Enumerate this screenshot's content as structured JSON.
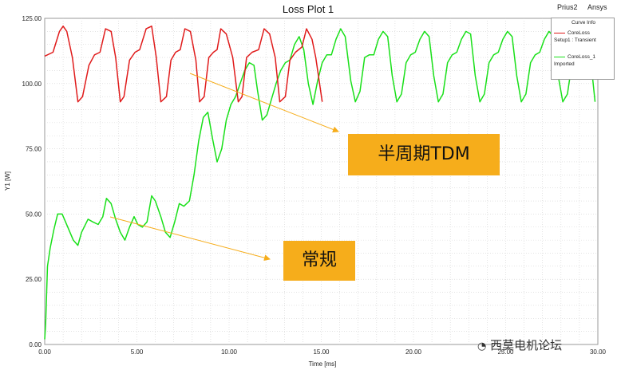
{
  "header": {
    "project": "Prius2",
    "brand": "Ansys"
  },
  "legend": {
    "title": "Curve Info",
    "entries": [
      {
        "name": "CoreLoss",
        "sub": "Setup1 : Transient",
        "color": "#e01b1b"
      },
      {
        "name": "CoreLoss_1",
        "sub": "Imported",
        "color": "#19e019"
      }
    ]
  },
  "annotations": {
    "callout_tdm": "半周期TDM",
    "callout_normal": "常规",
    "arrow_color": "#f6ad1b"
  },
  "watermark": "西莫电机论坛",
  "chart_data": {
    "type": "line",
    "title": "Loss Plot 1",
    "xlabel": "Time [ms]",
    "ylabel": "Y1 [W]",
    "xlim": [
      0,
      30
    ],
    "ylim": [
      0,
      125
    ],
    "xticks": [
      "0.00",
      "5.00",
      "10.00",
      "15.00",
      "20.00",
      "25.00",
      "30.00"
    ],
    "yticks": [
      "0.00",
      "25.00",
      "50.00",
      "75.00",
      "100.00",
      "125.00"
    ],
    "grid": true,
    "legend_position": "top-right",
    "series": [
      {
        "name": "CoreLoss",
        "color": "#e01b1b",
        "x": [
          0.0,
          0.45,
          0.8,
          1.0,
          1.2,
          1.5,
          1.8,
          2.05,
          2.4,
          2.7,
          3.0,
          3.3,
          3.6,
          3.85,
          4.1,
          4.3,
          4.6,
          4.9,
          5.15,
          5.5,
          5.8,
          6.05,
          6.3,
          6.6,
          6.85,
          7.1,
          7.35,
          7.6,
          7.9,
          8.2,
          8.4,
          8.65,
          8.9,
          9.15,
          9.35,
          9.55,
          9.85,
          10.2,
          10.5,
          10.7,
          10.95,
          11.25,
          11.6,
          11.9,
          12.2,
          12.5,
          12.75,
          13.05,
          13.3,
          13.6,
          13.95,
          14.2,
          14.5,
          14.7,
          15.05
        ],
        "y": [
          110.5,
          112,
          120,
          122,
          120,
          110,
          93,
          95,
          107,
          111,
          112,
          121,
          120,
          110,
          93,
          95,
          109,
          112,
          113,
          121,
          122,
          110,
          93,
          95,
          109,
          112,
          113,
          121,
          120,
          109,
          93,
          95,
          110,
          112,
          113,
          121,
          119,
          110,
          93,
          95,
          110,
          112,
          113,
          121,
          119,
          110,
          93,
          95,
          109,
          112,
          114,
          121,
          117,
          110,
          93
        ]
      },
      {
        "name": "CoreLoss_1",
        "color": "#19e019",
        "x": [
          0.0,
          0.05,
          0.15,
          0.3,
          0.5,
          0.7,
          0.95,
          1.25,
          1.55,
          1.8,
          2.0,
          2.35,
          2.6,
          2.9,
          3.15,
          3.35,
          3.6,
          3.85,
          4.1,
          4.35,
          4.6,
          4.85,
          5.05,
          5.3,
          5.55,
          5.8,
          6.0,
          6.3,
          6.55,
          6.8,
          7.05,
          7.3,
          7.55,
          7.85,
          8.1,
          8.35,
          8.6,
          8.85,
          9.1,
          9.35,
          9.6,
          9.85,
          10.1,
          10.35,
          10.6,
          10.85,
          11.1,
          11.35,
          11.55,
          11.8,
          12.05,
          12.3,
          12.55,
          12.8,
          13.05,
          13.3,
          13.55,
          13.8,
          14.05,
          14.3,
          14.55,
          14.8,
          15.05,
          15.3,
          15.55,
          15.8,
          16.05,
          16.3,
          16.6,
          16.85,
          17.1,
          17.35,
          17.6,
          17.85,
          18.1,
          18.35,
          18.6,
          18.85,
          19.1,
          19.35,
          19.6,
          19.85,
          20.1,
          20.35,
          20.6,
          20.85,
          21.1,
          21.35,
          21.6,
          21.85,
          22.1,
          22.35,
          22.6,
          22.85,
          23.1,
          23.35,
          23.6,
          23.85,
          24.1,
          24.35,
          24.6,
          24.85,
          25.1,
          25.35,
          25.6,
          25.85,
          26.1,
          26.35,
          26.6,
          26.85,
          27.1,
          27.35,
          27.6,
          27.85,
          28.1,
          28.35,
          28.6,
          28.85,
          29.1,
          29.35,
          29.6,
          29.85
        ],
        "y": [
          2,
          8,
          30,
          37,
          44,
          50,
          50,
          45,
          40,
          38,
          43,
          48,
          47,
          46,
          49,
          56,
          54,
          48,
          43,
          40,
          45,
          49,
          46,
          45,
          47,
          57,
          55,
          49,
          43,
          41,
          47,
          54,
          53,
          55,
          65,
          78,
          87,
          89,
          79,
          70,
          75,
          86,
          92,
          95,
          100,
          105,
          108,
          107,
          97,
          86,
          88,
          94,
          100,
          105,
          108,
          109,
          115,
          118,
          113,
          100,
          92,
          101,
          108,
          111,
          111,
          117,
          121,
          118,
          101,
          93,
          97,
          110,
          111,
          111,
          117,
          120,
          118,
          103,
          93,
          96,
          108,
          111,
          112,
          117,
          120,
          118,
          103,
          93,
          96,
          108,
          111,
          112,
          117,
          120,
          119,
          103,
          93,
          96,
          108,
          111,
          112,
          117,
          120,
          118,
          103,
          93,
          96,
          108,
          111,
          112,
          117,
          120,
          118,
          103,
          93,
          96,
          108,
          111,
          112,
          117,
          110,
          93
        ]
      }
    ]
  }
}
